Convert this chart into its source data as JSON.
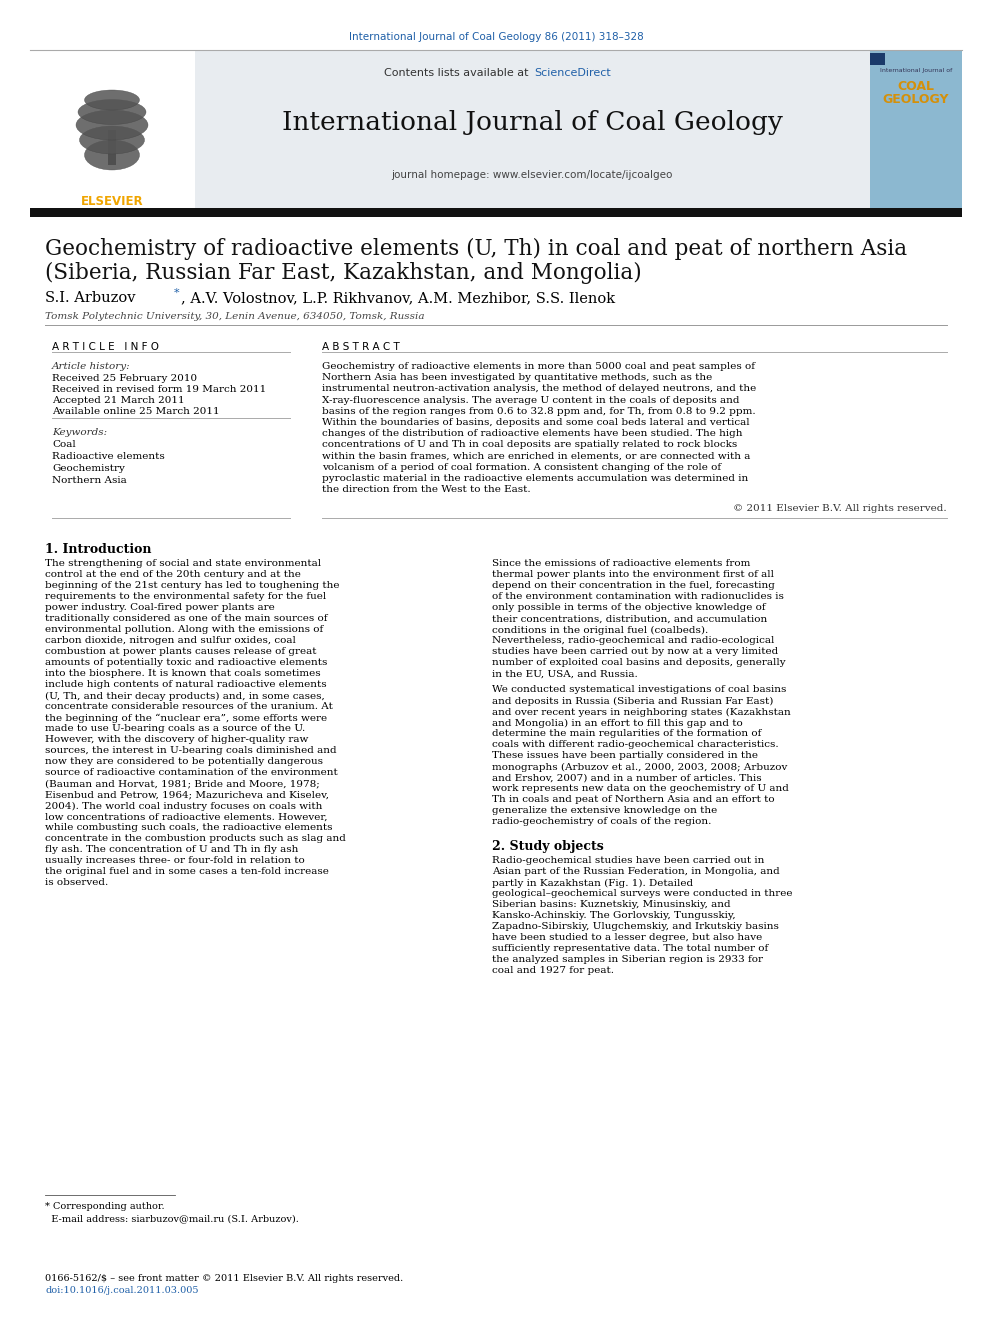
{
  "journal_ref": "International Journal of Coal Geology 86 (2011) 318–328",
  "journal_name": "International Journal of Coal Geology",
  "contents_line_pre": "Contents lists available at ",
  "contents_line_link": "ScienceDirect",
  "journal_homepage": "journal homepage: www.elsevier.com/locate/ijcoalgeo",
  "title_line1": "Geochemistry of radioactive elements (U, Th) in coal and peat of northern Asia",
  "title_line2": "(Siberia, Russian Far East, Kazakhstan, and Mongolia)",
  "author_main": "S.I. Arbuzov",
  "author_rest": ", A.V. Volostnov, L.P. Rikhvanov, A.M. Mezhibor, S.S. Ilenok",
  "affiliation": "Tomsk Polytechnic University, 30, Lenin Avenue, 634050, Tomsk, Russia",
  "article_info_header": "A R T I C L E   I N F O",
  "abstract_header": "A B S T R A C T",
  "article_history_label": "Article history:",
  "received": "Received 25 February 2010",
  "received_revised": "Received in revised form 19 March 2011",
  "accepted": "Accepted 21 March 2011",
  "available_online": "Available online 25 March 2011",
  "keywords_label": "Keywords:",
  "keywords": [
    "Coal",
    "Radioactive elements",
    "Geochemistry",
    "Northern Asia"
  ],
  "abstract_text": "Geochemistry of radioactive elements in more than 5000 coal and peat samples of Northern Asia has been investigated by quantitative methods, such as the instrumental neutron-activation analysis, the method of delayed neutrons, and the X-ray-fluorescence analysis. The average U content in the coals of deposits and basins of the region ranges from 0.6 to 32.8 ppm and, for Th, from 0.8 to 9.2 ppm. Within the boundaries of basins, deposits and some coal beds lateral and vertical changes of the distribution of radioactive elements have been studied. The high concentrations of U and Th in coal deposits are spatially related to rock blocks within the basin frames, which are enriched in elements, or are connected with a volcanism of a period of coal formation. A consistent changing of the role of pyroclastic material in the radioactive elements accumulation was determined in the direction from the West to the East.",
  "copyright": "© 2011 Elsevier B.V. All rights reserved.",
  "intro_heading": "1. Introduction",
  "intro_col1_para1": "The strengthening of social and state environmental control at the end of the 20th century and at the beginning of the 21st century has led to toughening the requirements to the environmental safety for the fuel power industry. Coal-fired power plants are traditionally considered as one of the main sources of environmental pollution. Along with the emissions of carbon dioxide, nitrogen and sulfur oxides, coal combustion at power plants causes release of great amounts of potentially toxic and radioactive elements into the biosphere. It is known that coals sometimes include high contents of natural radioactive elements (U, Th, and their decay products) and, in some cases, concentrate considerable resources of the uranium. At the beginning of the “nuclear era”, some efforts were made to use U-bearing coals as a source of the U. However, with the discovery of higher-quality raw sources, the interest in U-bearing coals diminished and now they are considered to be potentially dangerous source of radioactive contamination of the environment (Bauman and Horvat, 1981; Bride and Moore, 1978; Eisenbud and Petrow, 1964; Mazuricheva and Kiselev, 2004). The world coal industry focuses on coals with low concentrations of radioactive elements. However, while combusting such coals, the radioactive elements concentrate in the combustion products such as slag and fly ash. The concentration of U and Th in fly ash usually increases three- or four-fold in relation to the original fuel and in some cases a ten-fold increase is observed.",
  "intro_col2_para1": "Since the emissions of radioactive elements from thermal power plants into the environment first of all depend on their concentration in the fuel, forecasting of the environment contamination with radionuclides is only possible in terms of the objective knowledge of their concentrations, distribution, and accumulation conditions in the original fuel (coalbeds). Nevertheless, radio-geochemical and radio-ecological studies have been carried out by now at a very limited number of exploited coal basins and deposits, generally in the EU, USA, and Russia.",
  "intro_col2_para2": "We conducted systematical investigations of coal basins and deposits in Russia (Siberia and Russian Far East) and over recent years in neighboring states (Kazakhstan and Mongolia) in an effort to fill this gap and to determine the main regularities of the formation of coals with different radio-geochemical characteristics. These issues have been partially considered in the monographs (Arbuzov et al., 2000, 2003, 2008; Arbuzov and Ershov, 2007) and in a number of articles. This work represents new data on the geochemistry of U and Th in coals and peat of Northern Asia and an effort to generalize the extensive knowledge on the radio-geochemistry of coals of the region.",
  "section2_heading": "2. Study objects",
  "section2_text": "Radio-geochemical studies have been carried out in Asian part of the Russian Federation, in Mongolia, and partly in Kazakhstan (Fig. 1). Detailed geological–geochemical surveys were conducted in three Siberian basins: Kuznetskiy, Minusinskiy, and Kansko-Achinskiy. The Gorlovskiy, Tungusskiy, Zapadno-Sibirskiy, Ulugchemskiy, and Irkutskiy basins have been studied to a lesser degree, but also have sufficiently representative data. The total number of the analyzed samples in Siberian region is 2933 for coal and 1927 for peat.",
  "footnote_line1": "* Corresponding author.",
  "footnote_line2": "  E-mail address: siarbuzov@mail.ru (S.I. Arbuzov).",
  "footer_line1": "0166-5162/$ – see front matter © 2011 Elsevier B.V. All rights reserved.",
  "footer_line2": "doi:10.1016/j.coal.2011.03.005",
  "bg_color": "#ffffff",
  "header_bg": "#e8ecf0",
  "journal_ref_color": "#2060a8",
  "sciencedirect_color": "#2060a8",
  "elsevier_orange": "#f0a500",
  "body_text_color": "#000000",
  "gray_line_color": "#999999",
  "cover_bg": "#8cb8d0",
  "cover_text_color": "#d4900a"
}
